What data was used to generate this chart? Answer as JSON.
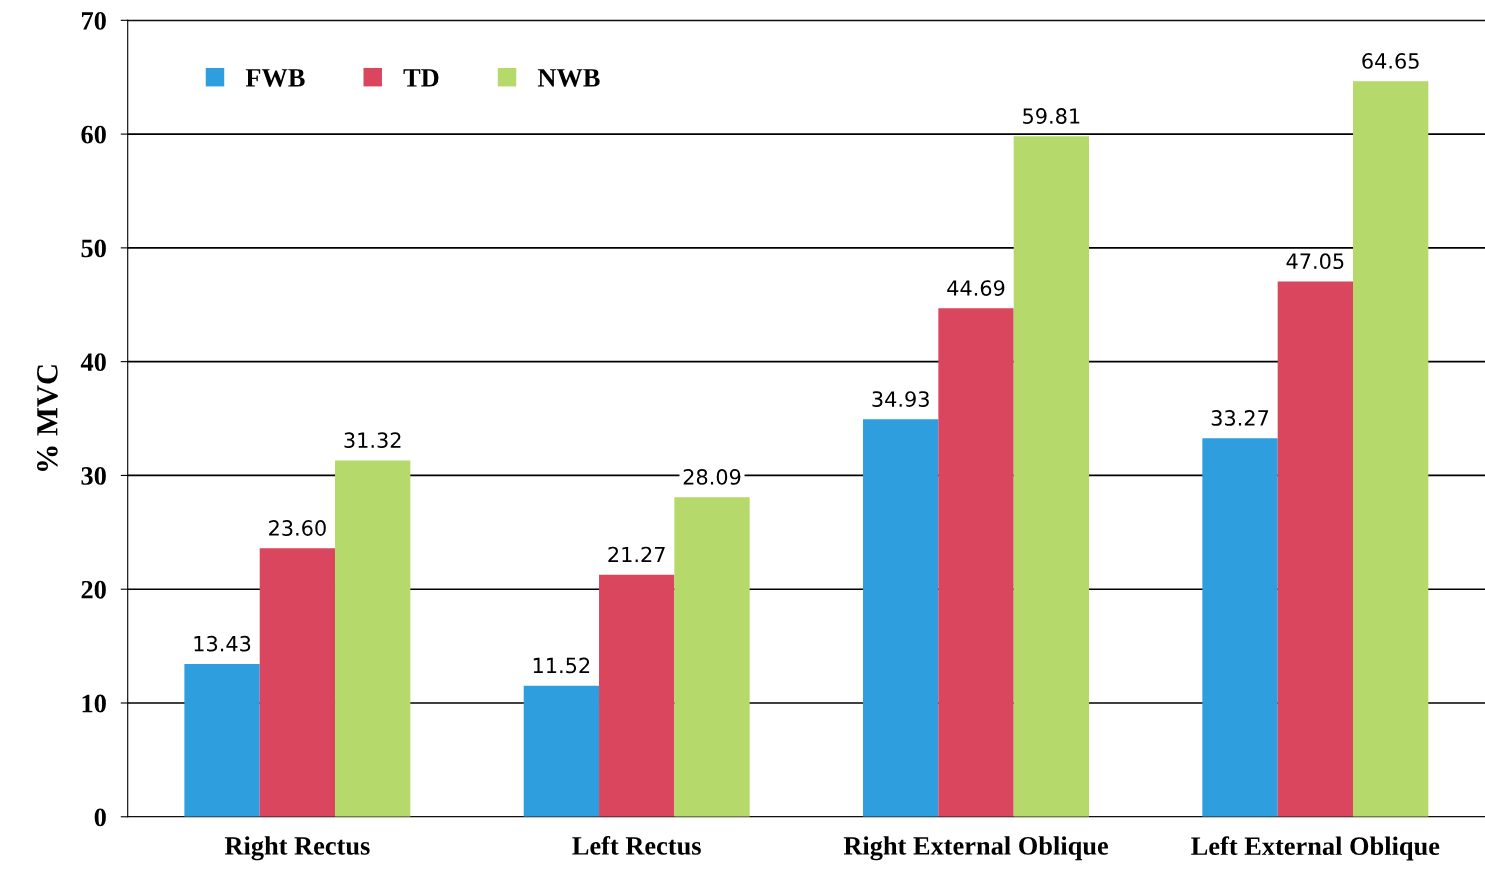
{
  "chart_data": {
    "type": "bar",
    "ylabel": "% MVC",
    "categories": [
      "Right Rectus",
      "Left Rectus",
      "Right External Oblique",
      "Left External Oblique"
    ],
    "series": [
      {
        "name": "FWB",
        "color": "#2e9ede",
        "values": [
          13.43,
          11.52,
          34.93,
          33.27
        ],
        "value_labels": [
          "13.43",
          "11.52",
          "34.93",
          "33.27"
        ]
      },
      {
        "name": "TD",
        "color": "#d9465e",
        "values": [
          23.6,
          21.27,
          44.69,
          47.05
        ],
        "value_labels": [
          "23.60",
          "21.27",
          "44.69",
          "47.05"
        ]
      },
      {
        "name": "NWB",
        "color": "#b6d96b",
        "values": [
          31.32,
          28.09,
          59.81,
          64.65
        ],
        "value_labels": [
          "31.32",
          "28.09",
          "59.81",
          "64.65"
        ]
      }
    ],
    "ylim": [
      0,
      70
    ],
    "yticks": [
      0,
      10,
      20,
      30,
      40,
      50,
      60,
      70
    ],
    "grid": "y",
    "legend": "top left"
  }
}
